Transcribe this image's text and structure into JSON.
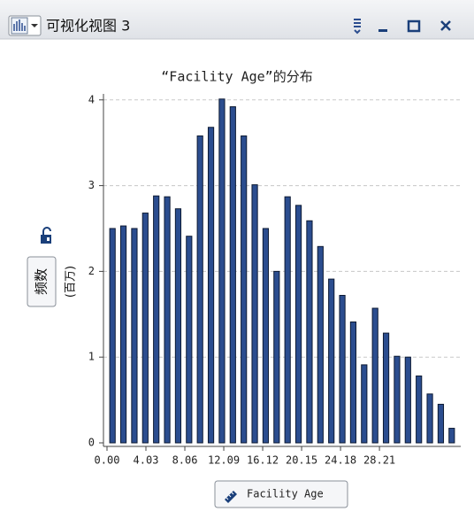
{
  "window": {
    "title": "可视化视图 3"
  },
  "chart_data": {
    "type": "histogram",
    "title": "“Facility Age”的分布",
    "x_label": "Facility Age",
    "y_label": "频数",
    "y_unit": "(百万)",
    "bins": [
      0,
      1.1331,
      2.2663,
      3.3994,
      4.5325,
      5.6656,
      6.7988,
      7.9319,
      9.065,
      10.1981,
      11.3313,
      12.4644,
      13.5975,
      14.7306,
      15.8638,
      16.9969,
      18.13,
      19.2631,
      20.3963,
      21.5294,
      22.6625,
      23.7956,
      24.9288,
      26.0619,
      27.195,
      28.3281,
      29.4613,
      30.5944,
      31.7275,
      32.8606,
      33.9938,
      35.1269,
      36.26
    ],
    "values": [
      2.5,
      2.53,
      2.5,
      2.68,
      2.88,
      2.87,
      2.73,
      2.41,
      3.58,
      3.68,
      4.01,
      3.92,
      3.58,
      3.01,
      2.5,
      2.0,
      2.87,
      2.77,
      2.59,
      2.29,
      1.91,
      1.72,
      1.41,
      0.91,
      1.57,
      1.28,
      1.01,
      1.0,
      0.78,
      0.57,
      0.45,
      0.17
    ],
    "color": "#2b4d8f",
    "xlim": [
      0,
      36.26
    ],
    "xticks": [
      {
        "value": 0,
        "label": "0.00"
      },
      4.03,
      8.06,
      12.09,
      16.12,
      20.15,
      24.18,
      28.21
    ],
    "ylim": [
      0,
      4.07
    ],
    "yticks": [
      0,
      1,
      2,
      3,
      4
    ],
    "grid": true
  }
}
